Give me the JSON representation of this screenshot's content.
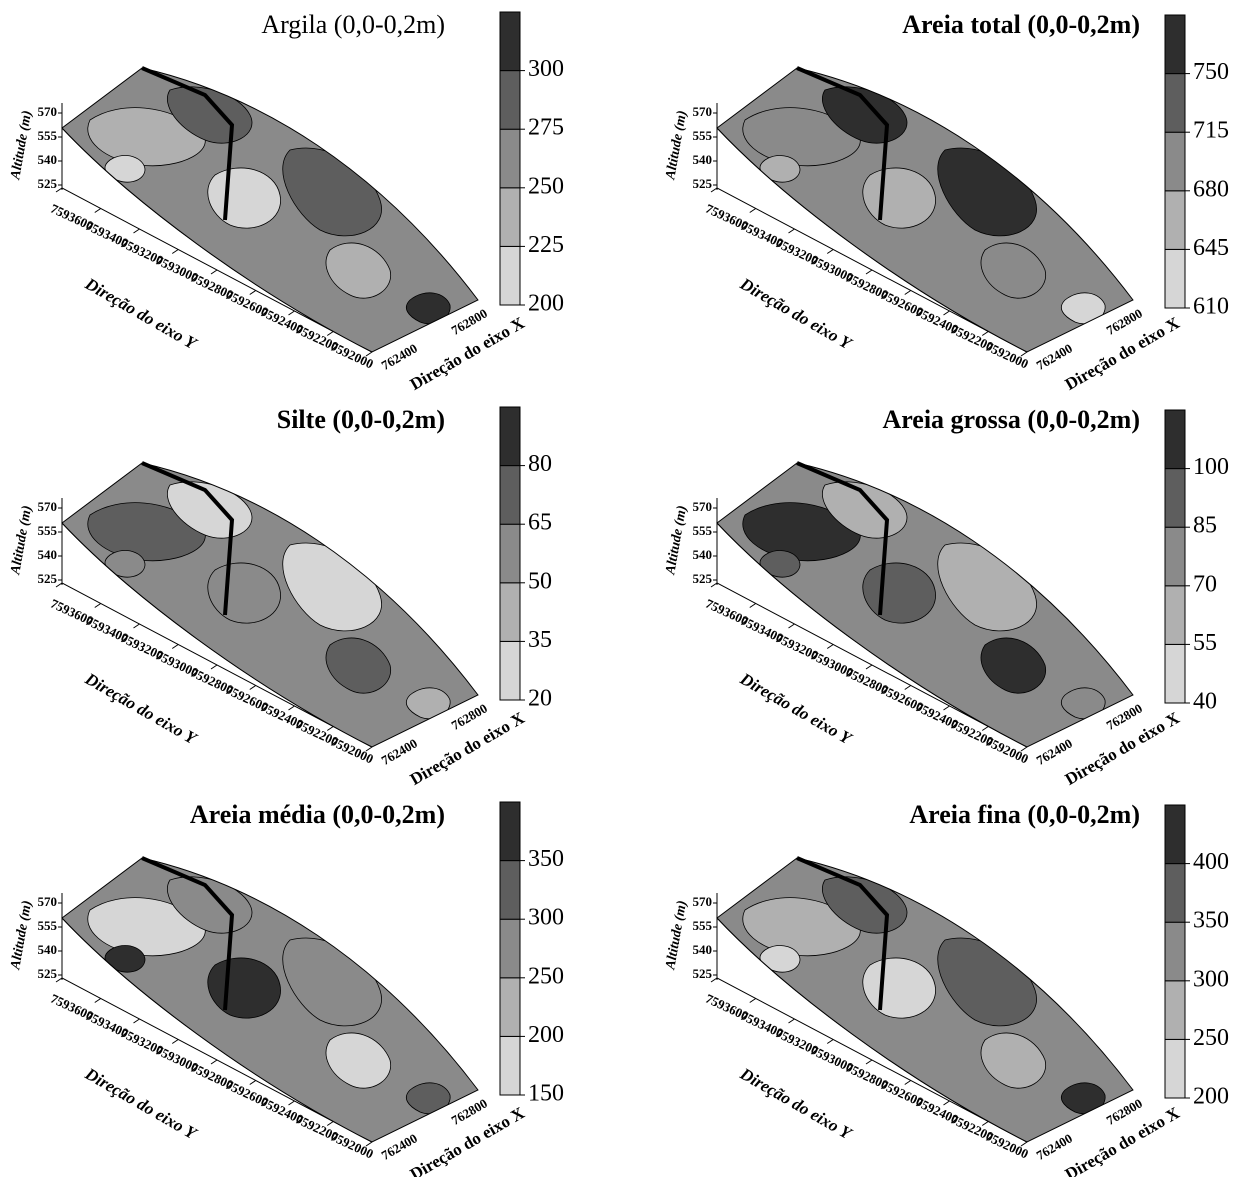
{
  "chart_data": [
    {
      "type": "surface",
      "title": "Argila (0,0-0,2m)",
      "title_bold": false,
      "zlabel": "Altitude (m)",
      "zlim": [
        525,
        570
      ],
      "zticks": [
        570,
        555,
        540,
        525
      ],
      "yticks": [
        7593600,
        7593400,
        7593200,
        7593000,
        7592800,
        7592600,
        7592400,
        7592200,
        7592000
      ],
      "ylabel": "Direção do eixo Y",
      "xticks": [
        762400,
        762800
      ],
      "xlabel": "Direção do eixo X",
      "clim": [
        200,
        325
      ],
      "cticks": [
        200,
        225,
        250,
        275,
        300
      ],
      "colors": [
        "#d6d6d6",
        "#b0b0b0",
        "#8a8a8a",
        "#5e5e5e",
        "#2e2e2e"
      ]
    },
    {
      "type": "surface",
      "title": "Areia total (0,0-0,2m)",
      "title_bold": true,
      "zlabel": "Altitude (m)",
      "zlim": [
        525,
        570
      ],
      "zticks": [
        570,
        555,
        540,
        525
      ],
      "yticks": [
        7593600,
        7593400,
        7593200,
        7593000,
        7592800,
        7592600,
        7592400,
        7592200,
        7592000
      ],
      "ylabel": "Direção do eixo Y",
      "xticks": [
        762400,
        762800
      ],
      "xlabel": "Direção do eixo X",
      "clim": [
        610,
        785
      ],
      "cticks": [
        610,
        645,
        680,
        715,
        750
      ],
      "colors": [
        "#d6d6d6",
        "#b0b0b0",
        "#8a8a8a",
        "#5e5e5e",
        "#2e2e2e"
      ]
    },
    {
      "type": "surface",
      "title": "Silte (0,0-0,2m)",
      "title_bold": true,
      "zlabel": "Altitude (m)",
      "zlim": [
        525,
        570
      ],
      "zticks": [
        570,
        555,
        540,
        525
      ],
      "yticks": [
        7593600,
        7593400,
        7593200,
        7593000,
        7592800,
        7592600,
        7592400,
        7592200,
        7592000
      ],
      "ylabel": "Direção do eixo Y",
      "xticks": [
        762400,
        762800
      ],
      "xlabel": "Direção do eixo X",
      "clim": [
        20,
        95
      ],
      "cticks": [
        20,
        35,
        50,
        65,
        80
      ],
      "colors": [
        "#d6d6d6",
        "#b0b0b0",
        "#8a8a8a",
        "#5e5e5e",
        "#2e2e2e"
      ]
    },
    {
      "type": "surface",
      "title": "Areia grossa (0,0-0,2m)",
      "title_bold": true,
      "zlabel": "Altitude (m)",
      "zlim": [
        525,
        570
      ],
      "zticks": [
        570,
        555,
        540,
        525
      ],
      "yticks": [
        7593600,
        7593400,
        7593200,
        7593000,
        7592800,
        7592600,
        7592400,
        7592200,
        7592000
      ],
      "ylabel": "Direção do eixo Y",
      "xticks": [
        762400,
        762800
      ],
      "xlabel": "Direção do eixo X",
      "clim": [
        40,
        115
      ],
      "cticks": [
        40,
        55,
        70,
        85,
        100
      ],
      "colors": [
        "#d6d6d6",
        "#b0b0b0",
        "#8a8a8a",
        "#5e5e5e",
        "#2e2e2e"
      ]
    },
    {
      "type": "surface",
      "title": "Areia média (0,0-0,2m)",
      "title_bold": true,
      "zlabel": "Altitude (m)",
      "zlim": [
        525,
        570
      ],
      "zticks": [
        570,
        555,
        540,
        525
      ],
      "yticks": [
        7593600,
        7593400,
        7593200,
        7593000,
        7592800,
        7592600,
        7592400,
        7592200,
        7592000
      ],
      "ylabel": "Direção do eixo Y",
      "xticks": [
        762400,
        762800
      ],
      "xlabel": "Direção do eixo X",
      "clim": [
        150,
        400
      ],
      "cticks": [
        150,
        200,
        250,
        300,
        350
      ],
      "colors": [
        "#d6d6d6",
        "#b0b0b0",
        "#8a8a8a",
        "#5e5e5e",
        "#2e2e2e"
      ]
    },
    {
      "type": "surface",
      "title": "Areia fina (0,0-0,2m)",
      "title_bold": true,
      "zlabel": "Altitude (m)",
      "zlim": [
        525,
        570
      ],
      "zticks": [
        570,
        555,
        540,
        525
      ],
      "yticks": [
        7593600,
        7593400,
        7593200,
        7593000,
        7592800,
        7592600,
        7592400,
        7592200,
        7592000
      ],
      "ylabel": "Direção do eixo Y",
      "xticks": [
        762400,
        762800
      ],
      "xlabel": "Direção do eixo X",
      "clim": [
        200,
        450
      ],
      "cticks": [
        200,
        250,
        300,
        350,
        400
      ],
      "colors": [
        "#d6d6d6",
        "#b0b0b0",
        "#8a8a8a",
        "#5e5e5e",
        "#2e2e2e"
      ]
    }
  ]
}
